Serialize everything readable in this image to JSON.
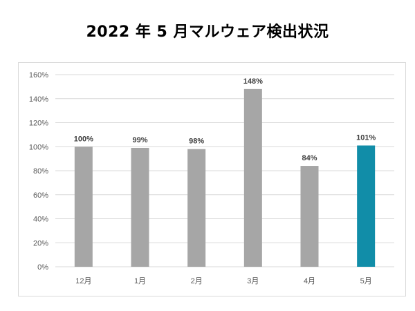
{
  "title": "2022 年 5 月マルウェア検出状況",
  "colors": {
    "bar_default": "#a6a6a6",
    "bar_highlight": "#118da8",
    "grid": "#d9d9d9"
  },
  "chart_data": {
    "type": "bar",
    "title": "2022 年 5 月マルウェア検出状況",
    "categories": [
      "12月",
      "1月",
      "2月",
      "3月",
      "4月",
      "5月"
    ],
    "values": [
      100,
      99,
      98,
      148,
      84,
      101
    ],
    "data_labels": [
      "100%",
      "99%",
      "98%",
      "148%",
      "84%",
      "101%"
    ],
    "highlight_index": 5,
    "ylim": [
      0,
      160
    ],
    "yticks": [
      0,
      20,
      40,
      60,
      80,
      100,
      120,
      140,
      160
    ],
    "ytick_labels": [
      "0%",
      "20%",
      "40%",
      "60%",
      "80%",
      "100%",
      "120%",
      "140%",
      "160%"
    ],
    "grid": true,
    "legend": "none"
  }
}
